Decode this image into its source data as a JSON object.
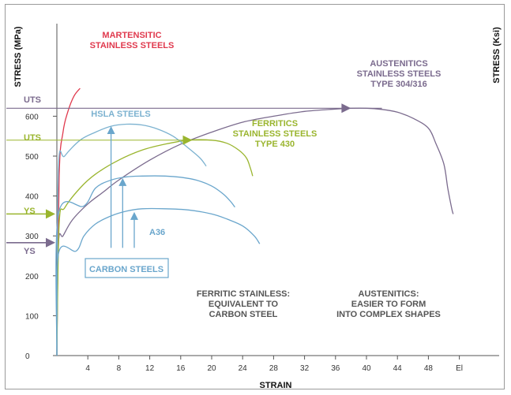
{
  "chart_data": {
    "type": "line",
    "title": "",
    "xlabel": "STRAIN",
    "ylabel_left": "STRESS (MPa)",
    "ylabel_right": "STRESS (Ksi)",
    "xlim": [
      0,
      56
    ],
    "ylim": [
      0,
      680
    ],
    "x_ticks": [
      "4",
      "8",
      "12",
      "16",
      "20",
      "24",
      "28",
      "32",
      "36",
      "40",
      "44",
      "48",
      "El"
    ],
    "y_ticks": [
      "0",
      "100",
      "200",
      "300",
      "400",
      "500",
      "600"
    ],
    "colors": {
      "martensitic": "#e03a4e",
      "austenitic": "#7b6b8e",
      "ferritic": "#9ab52e",
      "hsla": "#7cb2d0",
      "carbon": "#6aa6cc",
      "text_dark": "#555555"
    },
    "series": [
      {
        "key": "martensitic",
        "name": "MARTENSITIC STAINLESS STEELS",
        "points": [
          [
            0,
            0
          ],
          [
            0.3,
            450
          ],
          [
            0.8,
            560
          ],
          [
            1.4,
            610
          ],
          [
            2.2,
            650
          ],
          [
            3.0,
            670
          ]
        ]
      },
      {
        "key": "austenitic",
        "name": "AUSTENITICS STAINLESS STEELS TYPE 304/316",
        "points": [
          [
            0,
            0
          ],
          [
            0.2,
            280
          ],
          [
            0.8,
            300
          ],
          [
            2,
            340
          ],
          [
            4,
            380
          ],
          [
            6,
            410
          ],
          [
            8,
            440
          ],
          [
            12,
            490
          ],
          [
            16,
            530
          ],
          [
            20,
            560
          ],
          [
            24,
            585
          ],
          [
            28,
            600
          ],
          [
            32,
            612
          ],
          [
            36,
            618
          ],
          [
            38,
            620
          ],
          [
            40,
            620
          ],
          [
            42,
            617
          ],
          [
            44,
            610
          ],
          [
            46,
            595
          ],
          [
            48,
            570
          ],
          [
            49,
            530
          ],
          [
            50,
            480
          ],
          [
            50.5,
            420
          ],
          [
            51,
            370
          ],
          [
            51.2,
            355
          ]
        ]
      },
      {
        "key": "ferritic",
        "name": "FERRITICS STAINLESS STEELS TYPE 430",
        "points": [
          [
            0,
            0
          ],
          [
            0.3,
            330
          ],
          [
            1,
            370
          ],
          [
            3,
            420
          ],
          [
            5,
            455
          ],
          [
            8,
            490
          ],
          [
            11,
            515
          ],
          [
            14,
            530
          ],
          [
            17,
            540
          ],
          [
            20,
            540
          ],
          [
            22,
            532
          ],
          [
            23.5,
            515
          ],
          [
            24.5,
            495
          ],
          [
            25,
            470
          ],
          [
            25.3,
            450
          ]
        ]
      },
      {
        "key": "hsla",
        "name": "HSLA STEELS",
        "points": [
          [
            0,
            0
          ],
          [
            0.2,
            470
          ],
          [
            1,
            500
          ],
          [
            3,
            540
          ],
          [
            5,
            560
          ],
          [
            7,
            575
          ],
          [
            9,
            580
          ],
          [
            11,
            578
          ],
          [
            13,
            568
          ],
          [
            15,
            550
          ],
          [
            17,
            520
          ],
          [
            18.5,
            495
          ],
          [
            19.3,
            475
          ]
        ]
      },
      {
        "key": "carbon_high",
        "name": "",
        "points": [
          [
            0,
            0
          ],
          [
            0.2,
            355
          ],
          [
            3.5,
            375
          ],
          [
            5,
            420
          ],
          [
            7,
            440
          ],
          [
            9,
            448
          ],
          [
            11,
            450
          ],
          [
            14,
            450
          ],
          [
            16,
            447
          ],
          [
            18,
            440
          ],
          [
            20,
            425
          ],
          [
            21.5,
            405
          ],
          [
            22.5,
            385
          ],
          [
            23,
            372
          ]
        ]
      },
      {
        "key": "carbon_low",
        "name": "",
        "points": [
          [
            0,
            0
          ],
          [
            0.2,
            255
          ],
          [
            2.5,
            262
          ],
          [
            3.5,
            300
          ],
          [
            5,
            330
          ],
          [
            7,
            350
          ],
          [
            9,
            362
          ],
          [
            11,
            368
          ],
          [
            14,
            368
          ],
          [
            17,
            365
          ],
          [
            20,
            355
          ],
          [
            22,
            342
          ],
          [
            24,
            325
          ],
          [
            25.5,
            300
          ],
          [
            26.2,
            280
          ]
        ]
      }
    ],
    "reference_lines": [
      {
        "key": "austenitic_uts",
        "series": "austenitic",
        "y": 620
      },
      {
        "key": "ferritic_uts",
        "series": "ferritic",
        "y": 540
      }
    ],
    "markers": [
      {
        "key": "austenitic_uts_arrow",
        "series": "austenitic",
        "x": 38,
        "y": 620
      },
      {
        "key": "ferritic_uts_arrow",
        "series": "ferritic",
        "x": 17.5,
        "y": 540
      },
      {
        "key": "ferritic_ys_arrow",
        "series": "ferritic",
        "y": 355
      },
      {
        "key": "austenitic_ys_arrow",
        "series": "austenitic",
        "y": 283
      }
    ],
    "carbon_arrows": [
      {
        "key": "hsla_arrow",
        "x": 7,
        "y_from": 270,
        "y_to": 575
      },
      {
        "key": "carbon_mid_arrow",
        "x": 8.5,
        "y_from": 270,
        "y_to": 445
      },
      {
        "key": "carbon_low_arrow",
        "x": 10,
        "y_from": 270,
        "y_to": 360
      }
    ],
    "axis_markers": {
      "uts_austenitic": "UTS",
      "uts_ferritic": "UTS",
      "ys_ferritic": "YS",
      "ys_austenitic": "YS"
    },
    "labels": {
      "martensitic": [
        "MARTENSITIC",
        "STAINLESS STEELS"
      ],
      "austenitic": [
        "AUSTENITICS",
        "STAINLESS STEELS",
        "TYPE 304/316"
      ],
      "ferritic": [
        "FERRITICS",
        "STAINLESS STEELS",
        "TYPE 430"
      ],
      "hsla": "HSLA STEELS",
      "a36": "A36",
      "carbon": "CARBON STEELS",
      "note_ferritic": [
        "FERRITIC STAINLESS:",
        "EQUIVALENT TO",
        "CARBON STEEL"
      ],
      "note_austenitic": [
        "AUSTENITICS:",
        "EASIER TO FORM",
        "INTO COMPLEX SHAPES"
      ]
    }
  }
}
